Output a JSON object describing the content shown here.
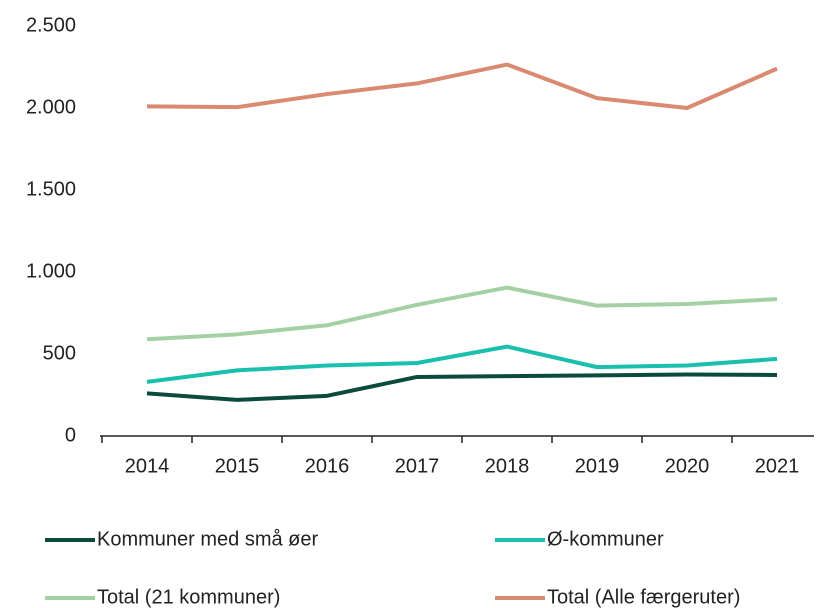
{
  "chart_data": {
    "type": "line",
    "categories": [
      "2014",
      "2015",
      "2016",
      "2017",
      "2018",
      "2019",
      "2020",
      "2021"
    ],
    "series": [
      {
        "name": "Kommuner med små øer",
        "color": "#0b4a3f",
        "values": [
          260,
          220,
          245,
          360,
          365,
          370,
          375,
          372
        ]
      },
      {
        "name": "Ø-kommuner",
        "color": "#1abfae",
        "values": [
          330,
          400,
          430,
          445,
          545,
          420,
          430,
          470
        ]
      },
      {
        "name": "Total (21 kommuner)",
        "color": "#a3d1a3",
        "values": [
          590,
          620,
          675,
          800,
          905,
          795,
          805,
          835
        ]
      },
      {
        "name": "Total (Alle færgeruter)",
        "color": "#d98a70",
        "values": [
          2010,
          2005,
          2085,
          2150,
          2265,
          2060,
          2000,
          2240
        ]
      }
    ],
    "ylim": [
      0,
      2500
    ],
    "yticks": [
      0,
      500,
      {
        "value": 1000,
        "label": "1.000"
      },
      {
        "value": 1500,
        "label": "1.500"
      },
      {
        "value": 2000,
        "label": "2.000"
      },
      {
        "value": 2500,
        "label": "2.500"
      }
    ],
    "grid": false
  }
}
